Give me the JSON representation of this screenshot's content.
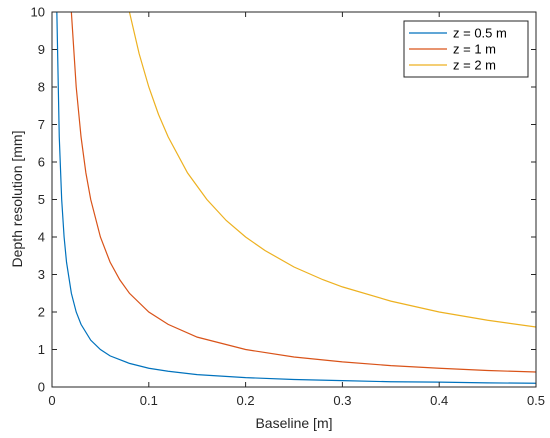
{
  "chart_data": {
    "type": "line",
    "title": "",
    "xlabel": "Baseline [m]",
    "ylabel": "Depth resolution [mm]",
    "xlim": [
      0,
      0.5
    ],
    "ylim": [
      0,
      10
    ],
    "xticks": [
      0,
      0.1,
      0.2,
      0.3,
      0.4,
      0.5
    ],
    "xtick_labels": [
      "0",
      "0.1",
      "0.2",
      "0.3",
      "0.4",
      "0.5"
    ],
    "yticks": [
      0,
      1,
      2,
      3,
      4,
      5,
      6,
      7,
      8,
      9,
      10
    ],
    "ytick_labels": [
      "0",
      "1",
      "2",
      "3",
      "4",
      "5",
      "6",
      "7",
      "8",
      "9",
      "10"
    ],
    "grid": false,
    "legend_position": "top-right",
    "series": [
      {
        "name": "z = 0.5 m",
        "color": "#0072bd",
        "x": [
          0.005,
          0.0075,
          0.01,
          0.0125,
          0.015,
          0.02,
          0.025,
          0.03,
          0.04,
          0.05,
          0.06,
          0.08,
          0.1,
          0.12,
          0.15,
          0.2,
          0.25,
          0.3,
          0.35,
          0.4,
          0.45,
          0.5
        ],
        "values": [
          10.0,
          6.67,
          5.0,
          4.0,
          3.33,
          2.5,
          2.0,
          1.67,
          1.25,
          1.0,
          0.83,
          0.63,
          0.5,
          0.42,
          0.33,
          0.25,
          0.2,
          0.17,
          0.14,
          0.13,
          0.11,
          0.1
        ]
      },
      {
        "name": "z = 1 m",
        "color": "#d95319",
        "x": [
          0.02,
          0.025,
          0.03,
          0.035,
          0.04,
          0.05,
          0.06,
          0.07,
          0.08,
          0.1,
          0.12,
          0.15,
          0.2,
          0.25,
          0.3,
          0.35,
          0.4,
          0.45,
          0.5
        ],
        "values": [
          10.0,
          8.0,
          6.67,
          5.71,
          5.0,
          4.0,
          3.33,
          2.86,
          2.5,
          2.0,
          1.67,
          1.33,
          1.0,
          0.8,
          0.67,
          0.57,
          0.5,
          0.44,
          0.4
        ]
      },
      {
        "name": "z = 2 m",
        "color": "#edb120",
        "x": [
          0.08,
          0.09,
          0.1,
          0.11,
          0.12,
          0.14,
          0.16,
          0.18,
          0.2,
          0.22,
          0.25,
          0.28,
          0.3,
          0.35,
          0.4,
          0.45,
          0.5
        ],
        "values": [
          10.0,
          8.89,
          8.0,
          7.27,
          6.67,
          5.71,
          5.0,
          4.44,
          4.0,
          3.64,
          3.2,
          2.86,
          2.67,
          2.29,
          2.0,
          1.78,
          1.6
        ]
      }
    ]
  }
}
